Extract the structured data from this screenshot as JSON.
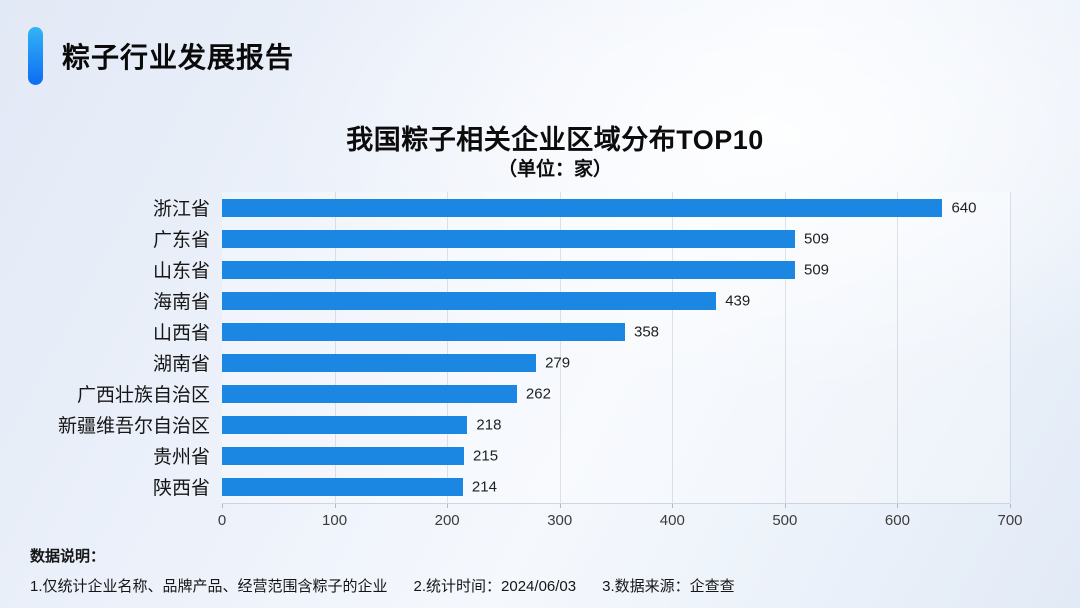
{
  "header": {
    "title": "粽子行业发展报告"
  },
  "accent": {
    "gradient_top": "#33b4f5",
    "gradient_bottom": "#0d6cf2"
  },
  "chart_data": {
    "type": "bar",
    "orientation": "horizontal",
    "title": "我国粽子相关企业区域分布TOP10",
    "subtitle": "（单位：家）",
    "categories": [
      "浙江省",
      "广东省",
      "山东省",
      "海南省",
      "山西省",
      "湖南省",
      "广西壮族自治区",
      "新疆维吾尔自治区",
      "贵州省",
      "陕西省"
    ],
    "values": [
      640,
      509,
      509,
      439,
      358,
      279,
      262,
      218,
      215,
      214
    ],
    "xlim": [
      0,
      700
    ],
    "x_ticks": [
      0,
      100,
      200,
      300,
      400,
      500,
      600,
      700
    ],
    "bar_color": "#1c87e2",
    "grid": true,
    "legend": false,
    "value_labels": true
  },
  "footer": {
    "label": "数据说明：",
    "notes": [
      "1.仅统计企业名称、品牌产品、经营范围含粽子的企业",
      "2.统计时间：2024/06/03",
      "3.数据来源：企查查"
    ]
  }
}
